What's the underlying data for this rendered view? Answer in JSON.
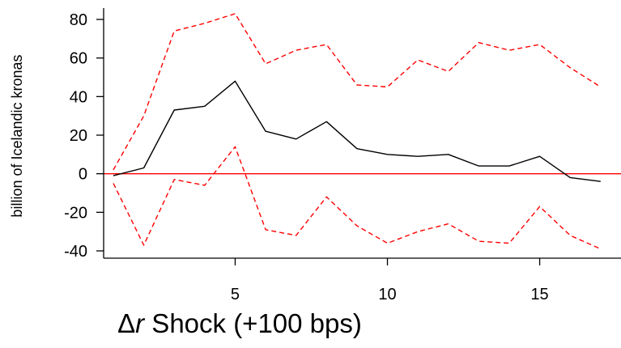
{
  "chart_data": {
    "type": "line",
    "title": "",
    "xlabel": "Δr Shock (+100 bps)",
    "xlabel_parts": {
      "delta": "Δ",
      "var": "r",
      "rest": " Shock (+100 bps)"
    },
    "ylabel": "billion of Icelandic kronas",
    "xlim": [
      1,
      17
    ],
    "ylim": [
      -40,
      80
    ],
    "x_ticks": [
      5,
      10,
      15
    ],
    "y_ticks": [
      -40,
      -20,
      0,
      20,
      40,
      60,
      80
    ],
    "x": [
      1,
      2,
      3,
      4,
      5,
      6,
      7,
      8,
      9,
      10,
      11,
      12,
      13,
      14,
      15,
      16,
      17
    ],
    "series": [
      {
        "role": "estimate",
        "style": "solid",
        "color": "#000000",
        "values": [
          -1,
          3,
          33,
          35,
          48,
          22,
          18,
          27,
          13,
          10,
          9,
          10,
          4,
          4,
          9,
          -2,
          -4
        ]
      },
      {
        "role": "upper-band",
        "style": "dashed",
        "color": "#ff0000",
        "values": [
          2,
          30,
          74,
          78,
          83,
          57,
          64,
          67,
          46,
          45,
          59,
          53,
          68,
          64,
          67,
          55,
          45
        ]
      },
      {
        "role": "lower-band",
        "style": "dashed",
        "color": "#ff0000",
        "values": [
          -5,
          -37,
          -3,
          -6,
          14,
          -29,
          -32,
          -12,
          -27,
          -36,
          -30,
          -26,
          -35,
          -36,
          -17,
          -32,
          -39
        ]
      }
    ],
    "reference_line": {
      "y": 0,
      "color": "#ff0000"
    },
    "grid": false,
    "legend": "none"
  }
}
